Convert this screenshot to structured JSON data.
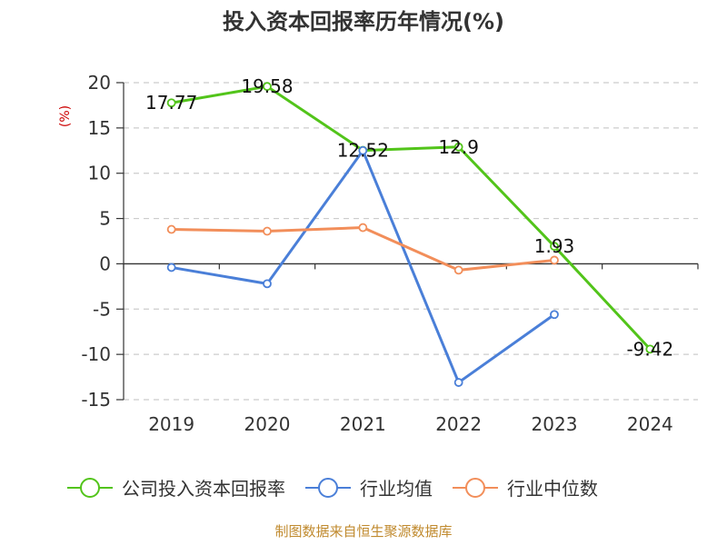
{
  "title": "投入资本回报率历年情况(%)",
  "footer": "制图数据来自恒生聚源数据库",
  "colors": {
    "title": "#333333",
    "axis": "#333333",
    "tick_text": "#333333",
    "grid": "#cccccc",
    "unit_text": "#cc0000",
    "footer": "#c08a2e"
  },
  "chart_data": {
    "type": "line",
    "title": "投入资本回报率历年情况(%)",
    "ylabel": "(%)",
    "xlabel": "",
    "categories": [
      "2019",
      "2020",
      "2021",
      "2022",
      "2023",
      "2024"
    ],
    "ylim": [
      -15,
      20
    ],
    "yticks": [
      20,
      15,
      10,
      5,
      0,
      -5,
      -10,
      -15
    ],
    "grid": true,
    "legend_position": "bottom",
    "series": [
      {
        "name": "公司投入资本回报率",
        "color": "#52c41a",
        "values": [
          17.77,
          19.58,
          12.52,
          12.9,
          1.93,
          -9.42
        ],
        "labels": [
          "17.77",
          "19.58",
          "12.52",
          "12.9",
          "1.93",
          "-9.42"
        ]
      },
      {
        "name": "行业均值",
        "color": "#4a7fd8",
        "values": [
          -0.4,
          -2.2,
          12.5,
          -13.1,
          -5.6,
          null
        ]
      },
      {
        "name": "行业中位数",
        "color": "#f28e5a",
        "values": [
          3.8,
          3.6,
          4.0,
          -0.7,
          0.4,
          null
        ]
      }
    ]
  }
}
